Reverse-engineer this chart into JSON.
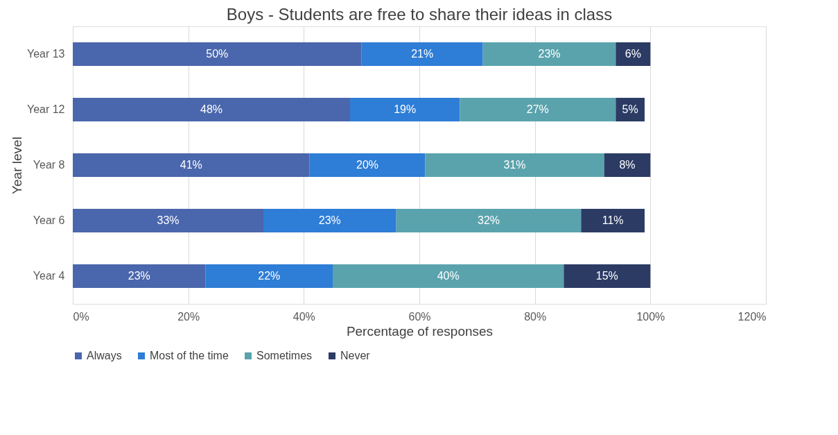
{
  "chart_data": {
    "type": "bar",
    "orientation": "horizontal",
    "stacked": true,
    "title": "Boys - Students are free to share their ideas in class",
    "xlabel": "Percentage of responses",
    "ylabel": "Year level",
    "categories": [
      "Year 13",
      "Year 12",
      "Year 8",
      "Year 6",
      "Year 4"
    ],
    "series": [
      {
        "name": "Always",
        "color": "#4a66ac",
        "values": [
          50,
          48,
          41,
          33,
          23
        ],
        "value_labels": [
          "50%",
          "48%",
          "41%",
          "33%",
          "23%"
        ]
      },
      {
        "name": "Most of the time",
        "color": "#2e7dd6",
        "values": [
          21,
          19,
          20,
          23,
          22
        ],
        "value_labels": [
          "21%",
          "19%",
          "20%",
          "23%",
          "22%"
        ]
      },
      {
        "name": "Sometimes",
        "color": "#5aa3ad",
        "values": [
          23,
          27,
          31,
          32,
          40
        ],
        "value_labels": [
          "23%",
          "27%",
          "31%",
          "32%",
          "40%"
        ]
      },
      {
        "name": "Never",
        "color": "#2b3b64",
        "values": [
          6,
          5,
          8,
          11,
          15
        ],
        "value_labels": [
          "6%",
          "5%",
          "8%",
          "11%",
          "15%"
        ]
      }
    ],
    "xlim": [
      0,
      120
    ],
    "xticks": [
      {
        "value": 0,
        "label": "0%"
      },
      {
        "value": 20,
        "label": "20%"
      },
      {
        "value": 40,
        "label": "40%"
      },
      {
        "value": 60,
        "label": "60%"
      },
      {
        "value": 80,
        "label": "80%"
      },
      {
        "value": 100,
        "label": "100%"
      },
      {
        "value": 120,
        "label": "120%"
      }
    ],
    "grid": "x",
    "legend": "bottom"
  }
}
